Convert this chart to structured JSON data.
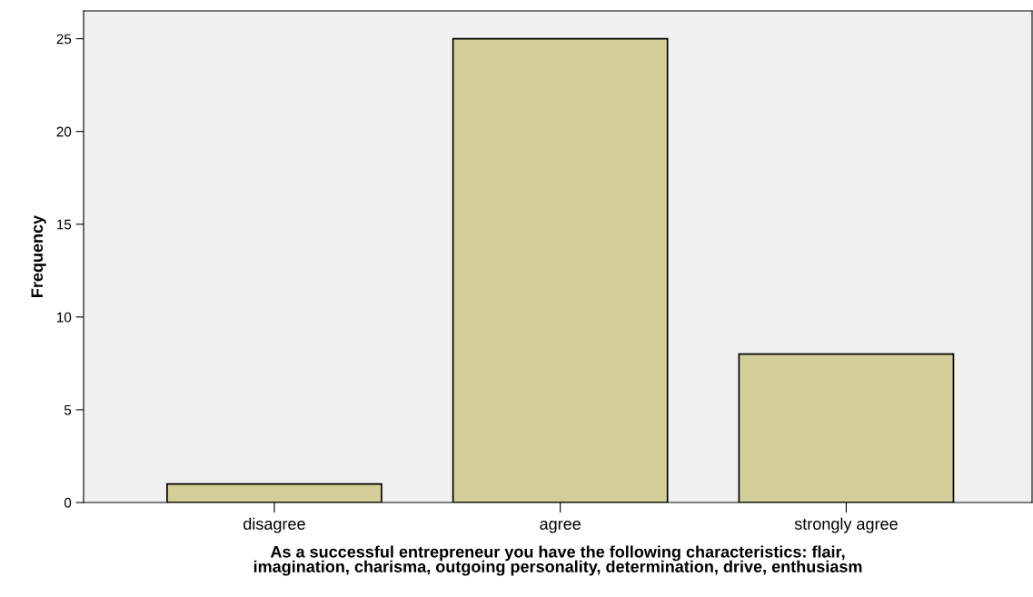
{
  "chart_data": {
    "type": "bar",
    "categories": [
      "disagree",
      "agree",
      "strongly agree"
    ],
    "values": [
      1,
      25,
      8
    ],
    "color": "#d3ce97",
    "xlabel": "As a successful entrepreneur you have the following characteristics: flair,\nimagination, charisma, outgoing personality, determination, drive, enthusiasm",
    "ylabel": "Frequency",
    "ylim": [
      0,
      26.5
    ],
    "yticks": [
      0,
      5,
      10,
      15,
      20,
      25
    ],
    "grid": false,
    "legend": false
  }
}
